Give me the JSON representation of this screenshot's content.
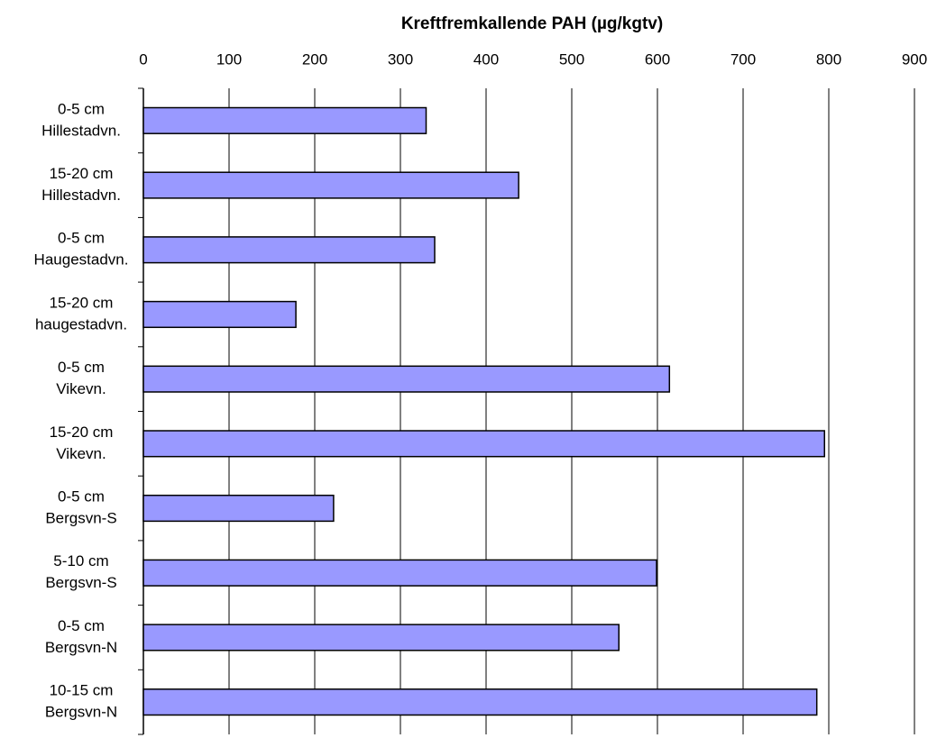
{
  "chart_data": {
    "type": "bar",
    "orientation": "horizontal",
    "title": "Kreftfremkallende PAH (µg/kgtv)",
    "categories": [
      [
        "0-5 cm",
        "Hillestadvn."
      ],
      [
        "15-20 cm",
        "Hillestadvn."
      ],
      [
        "0-5 cm",
        "Haugestadvn."
      ],
      [
        "15-20 cm",
        "haugestadvn."
      ],
      [
        "0-5 cm",
        "Vikevn."
      ],
      [
        "15-20 cm",
        "Vikevn."
      ],
      [
        "0-5 cm",
        "Bergsvn-S"
      ],
      [
        "5-10 cm",
        "Bergsvn-S"
      ],
      [
        "0-5 cm",
        "Bergsvn-N"
      ],
      [
        "10-15 cm",
        "Bergsvn-N"
      ]
    ],
    "values": [
      330,
      438,
      340,
      178,
      614,
      795,
      222,
      599,
      555,
      786
    ],
    "color": "#9999ff",
    "xlim": [
      0,
      900
    ],
    "xticks": [
      0,
      100,
      200,
      300,
      400,
      500,
      600,
      700,
      800,
      900
    ],
    "grid": true
  }
}
